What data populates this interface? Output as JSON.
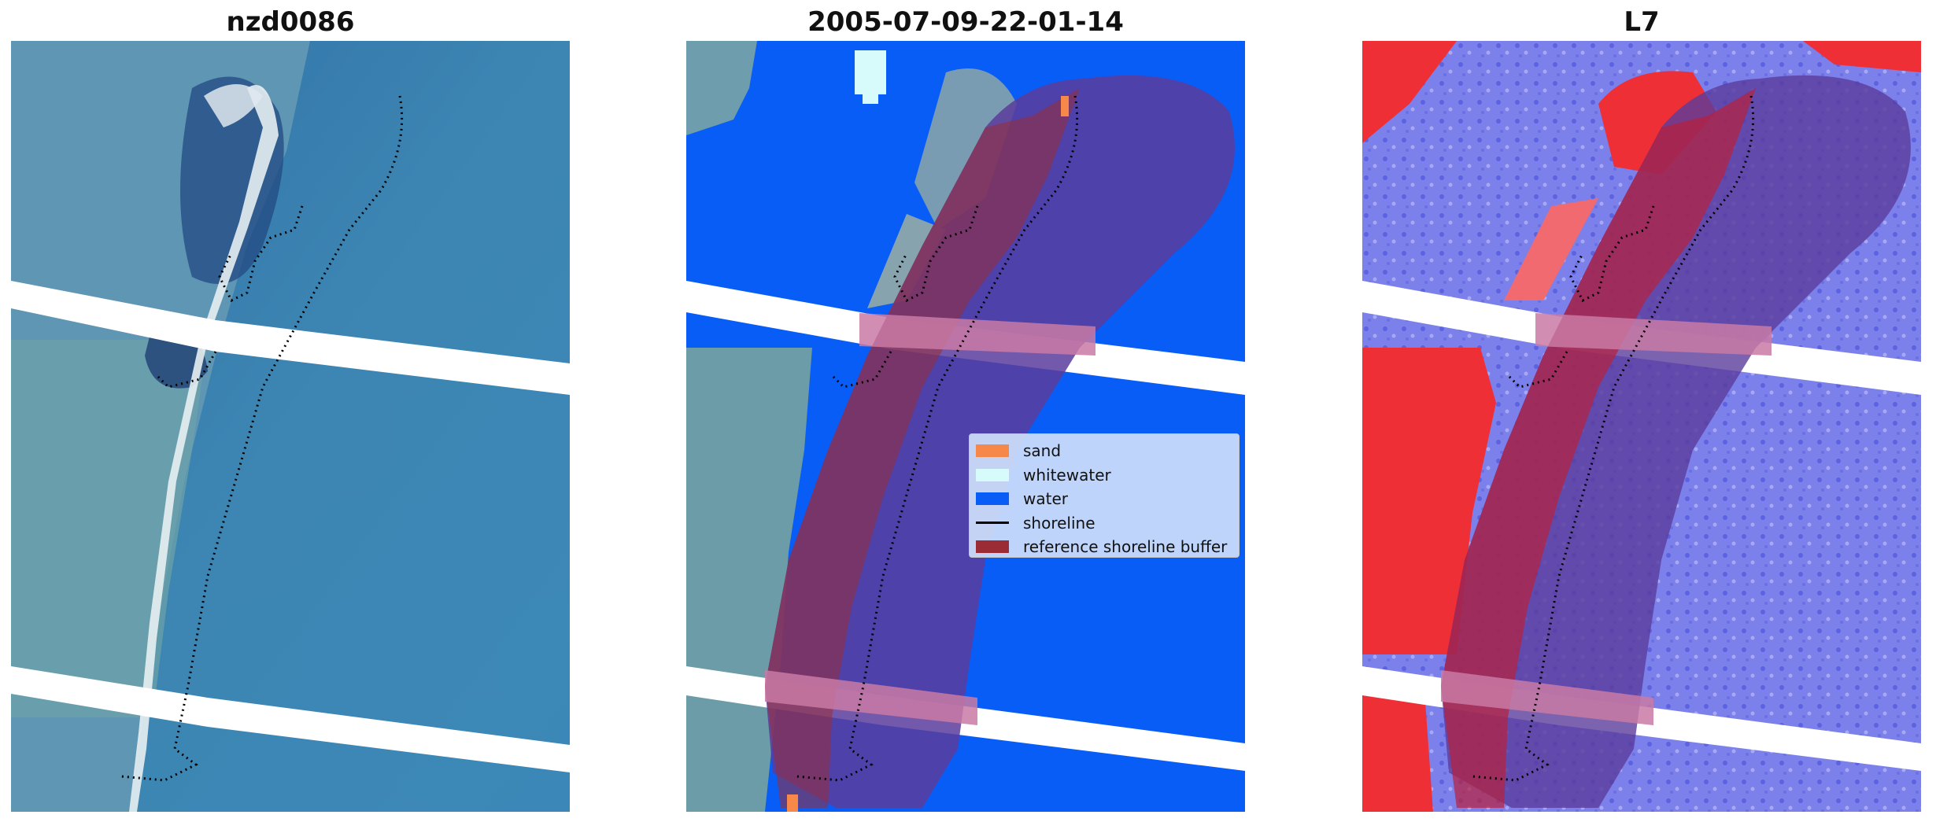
{
  "panels": [
    {
      "title": "nzd0086"
    },
    {
      "title": "2005-07-09-22-01-14"
    },
    {
      "title": "L7"
    }
  ],
  "legend": {
    "items": [
      {
        "label": "sand",
        "color": "#f6884a"
      },
      {
        "label": "whitewater",
        "color": "#d7fbfb"
      },
      {
        "label": "water",
        "color": "#085df7"
      },
      {
        "label": "shoreline",
        "color": "#000000"
      },
      {
        "label": "reference shoreline buffer",
        "color": "#9b2b35"
      }
    ]
  }
}
